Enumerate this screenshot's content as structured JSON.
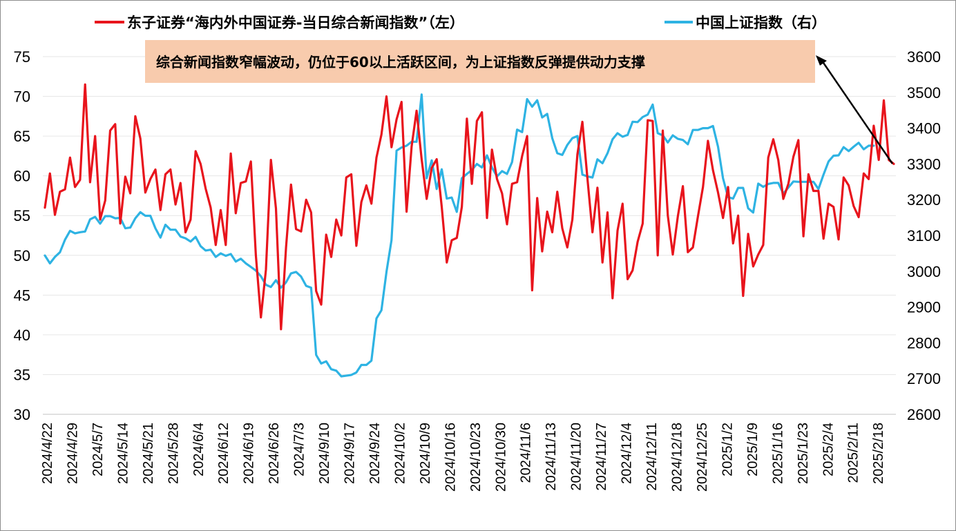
{
  "chart_data": {
    "type": "line",
    "legend": {
      "placement": "top",
      "items": [
        {
          "label": "东子证券“海内外中国证券-当日综合新闻指数”（左）",
          "color": "#e8141c"
        },
        {
          "label": "中国上证指数（右）",
          "color": "#2eb3e3"
        }
      ]
    },
    "annotation": {
      "text": "综合新闻指数窄幅波动，仍位于60以上活跃区间，为上证指数反弹提供动力支撑",
      "background": "#f8cbad"
    },
    "left_axis": {
      "ylim": [
        30,
        75
      ],
      "ticks": [
        "30",
        "35",
        "40",
        "45",
        "50",
        "55",
        "60",
        "65",
        "70",
        "75"
      ]
    },
    "right_axis": {
      "ylim": [
        2600,
        3600
      ],
      "ticks": [
        "2600",
        "2700",
        "2800",
        "2900",
        "3000",
        "3100",
        "3200",
        "3300",
        "3400",
        "3500",
        "3600"
      ]
    },
    "x_tick_labels": [
      "2024/4/22",
      "2024/4/29",
      "2024/5/7",
      "2024/5/14",
      "2024/5/21",
      "2024/5/28",
      "2024/6/4",
      "2024/6/12",
      "2024/6/19",
      "2024/6/26",
      "2024/7/3",
      "2024/9/10",
      "2024/9/17",
      "2024/9/24",
      "2024/10/2",
      "2024/10/9",
      "2024/10/16",
      "2024/10/23",
      "2024/10/30",
      "2024/11/6",
      "2024/11/13",
      "2024/11/20",
      "2024/11/27",
      "2024/12/4",
      "2024/12/11",
      "2024/12/18",
      "2024/12/25",
      "2025/1/2",
      "2025/1/9",
      "2025/1/16",
      "2025/1/23",
      "2025/2/4",
      "2025/2/11",
      "2025/2/18"
    ],
    "series": [
      {
        "name": "东子证券“海内外中国证券-当日综合新闻指数”（左）",
        "axis": "left",
        "color": "#e8141c",
        "values": [
          56,
          60.3,
          55.1,
          58,
          58.3,
          62.3,
          58.6,
          59.5,
          71.5,
          59.2,
          65,
          54.5,
          56.9,
          65.7,
          66.5,
          54,
          59.9,
          57.8,
          67.5,
          64.7,
          57.9,
          59.6,
          60.8,
          55.7,
          60.2,
          60.8,
          56.4,
          59.1,
          52.9,
          54.5,
          63.1,
          61.5,
          58.4,
          56,
          51.3,
          55.7,
          51.3,
          62.8,
          55.3,
          59.1,
          59.3,
          61.8,
          50,
          42.2,
          48.2,
          62,
          55.9,
          40.7,
          51,
          58.9,
          53.3,
          53,
          57,
          55.4,
          45.5,
          43.8,
          52.6,
          49.8,
          54.5,
          52.5,
          59.8,
          60.2,
          51.2,
          56.7,
          58.8,
          56.5,
          62.3,
          65.2,
          70,
          63.6,
          67.1,
          69.3,
          55.5,
          63.7,
          68.2,
          62.1,
          57.1,
          61,
          62.1,
          56.1,
          49.1,
          51.9,
          52.2,
          56.1,
          67.2,
          59,
          66.9,
          68,
          54.7,
          63.3,
          59.6,
          57.8,
          53.9,
          59,
          59.2,
          62.5,
          65,
          45.6,
          57.2,
          50.5,
          55.5,
          52.9,
          58,
          53.4,
          51,
          54.5,
          62.7,
          66.8,
          59.7,
          52.9,
          58.5,
          49.1,
          55.4,
          44.6,
          53.1,
          56.5,
          47,
          48.1,
          51.7,
          54,
          67,
          66.9,
          50,
          65.7,
          55,
          50.1,
          54.9,
          58.7,
          50.4,
          51,
          54.9,
          58.6,
          64.4,
          60.7,
          57.9,
          54.7,
          58.6,
          51.5,
          55,
          44.9,
          52.7,
          48.6,
          50.1,
          51.3,
          62.3,
          64.6,
          62,
          57.1,
          59,
          62.4,
          64.5,
          52.4,
          60.2,
          58.1,
          58.1,
          52.1,
          56.5,
          56.1,
          52,
          59.8,
          58.8,
          56.2,
          54.8,
          60.3,
          59.6,
          66.3,
          62,
          69.5,
          62,
          61.5
        ]
      },
      {
        "name": "中国上证指数（右）",
        "axis": "right",
        "color": "#2eb3e3",
        "values": [
          3044,
          3022,
          3040,
          3053,
          3088,
          3113,
          3106,
          3109,
          3111,
          3145,
          3152,
          3133,
          3154,
          3154,
          3148,
          3149,
          3120,
          3122,
          3148,
          3165,
          3155,
          3155,
          3120,
          3094,
          3130,
          3116,
          3116,
          3097,
          3092,
          3083,
          3096,
          3070,
          3058,
          3060,
          3040,
          3050,
          3043,
          3048,
          3027,
          3035,
          3022,
          3012,
          3002,
          2986,
          2962,
          2956,
          2975,
          2954,
          2969,
          2994,
          2998,
          2985,
          2959,
          2954,
          2766,
          2742,
          2748,
          2726,
          2722,
          2706,
          2708,
          2710,
          2717,
          2738,
          2738,
          2750,
          2868,
          2891,
          2998,
          3087,
          3337,
          3346,
          3351,
          3362,
          3362,
          3494,
          3260,
          3310,
          3230,
          3285,
          3203,
          3206,
          3166,
          3260,
          3272,
          3283,
          3300,
          3290,
          3324,
          3290,
          3265,
          3280,
          3272,
          3305,
          3396,
          3389,
          3481,
          3460,
          3478,
          3430,
          3440,
          3372,
          3330,
          3325,
          3353,
          3372,
          3378,
          3270,
          3265,
          3262,
          3313,
          3302,
          3330,
          3369,
          3386,
          3376,
          3381,
          3418,
          3417,
          3431,
          3438,
          3466,
          3386,
          3380,
          3360,
          3380,
          3370,
          3367,
          3355,
          3395,
          3395,
          3400,
          3400,
          3406,
          3348,
          3260,
          3207,
          3203,
          3233,
          3233,
          3176,
          3164,
          3245,
          3236,
          3244,
          3247,
          3247,
          3217,
          3234,
          3251,
          3250,
          3250,
          3250,
          3250,
          3230,
          3270,
          3307,
          3323,
          3324,
          3347,
          3336,
          3348,
          3359,
          3341,
          3351,
          3351
        ]
      }
    ]
  }
}
